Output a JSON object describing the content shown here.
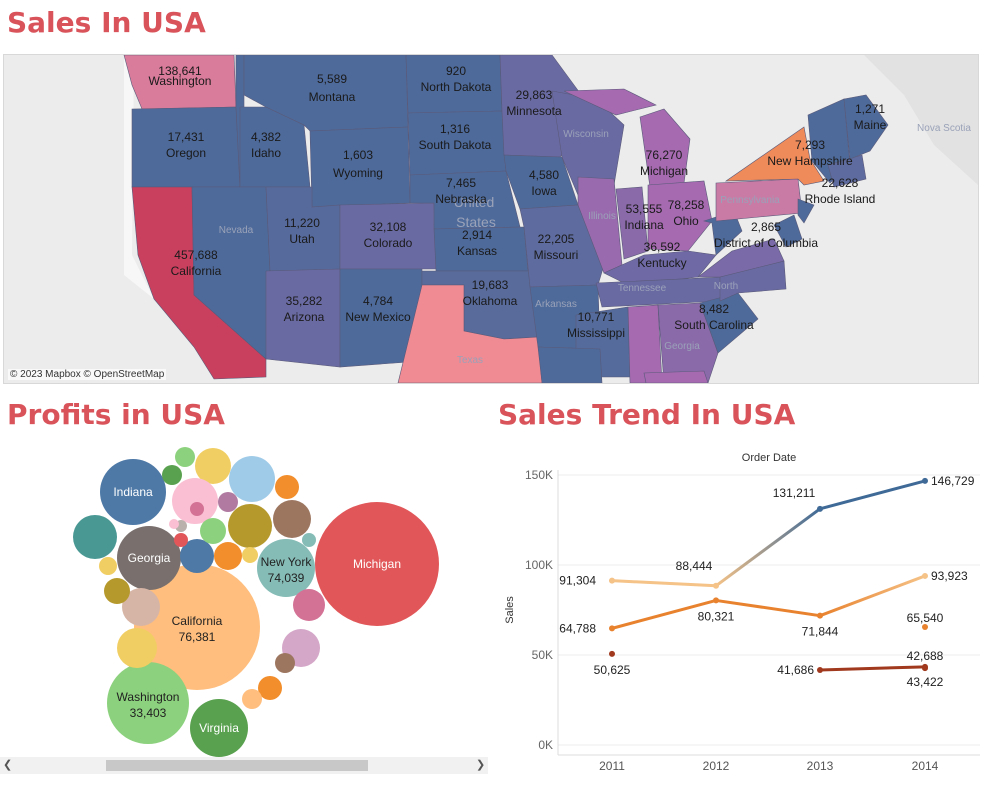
{
  "titles": {
    "sales": "Sales In USA",
    "profits": "Profits in USA",
    "trend": "Sales Trend In USA"
  },
  "map": {
    "attribution": "© 2023 Mapbox © OpenStreetMap",
    "regions": [
      {
        "key": "wa",
        "state": "Washington",
        "value": "138,641",
        "color": "#d97b9a"
      },
      {
        "key": "or",
        "state": "Oregon",
        "value": "17,431",
        "color": "#4e6a9a"
      },
      {
        "key": "ca",
        "state": "California",
        "value": "457,688",
        "color": "#c8405e"
      },
      {
        "key": "id",
        "state": "Idaho",
        "value": "4,382",
        "color": "#4e6a9a"
      },
      {
        "key": "mt",
        "state": "Montana",
        "value": "5,589",
        "color": "#4e6a9a"
      },
      {
        "key": "wy",
        "state": "Wyoming",
        "value": "1,603",
        "color": "#4e6a9a"
      },
      {
        "key": "ut",
        "state": "Utah",
        "value": "11,220",
        "color": "#576a9c"
      },
      {
        "key": "az",
        "state": "Arizona",
        "value": "35,282",
        "color": "#6a6aa3"
      },
      {
        "key": "co",
        "state": "Colorado",
        "value": "32,108",
        "color": "#6a6aa3"
      },
      {
        "key": "nm",
        "state": "New Mexico",
        "value": "4,784",
        "color": "#4e6a9a"
      },
      {
        "key": "nd",
        "state": "North Dakota",
        "value": "920",
        "color": "#4e6a9a"
      },
      {
        "key": "sd",
        "state": "South Dakota",
        "value": "1,316",
        "color": "#4e6a9a"
      },
      {
        "key": "ne",
        "state": "Nebraska",
        "value": "7,465",
        "color": "#4e6a9a"
      },
      {
        "key": "ks",
        "state": "Kansas",
        "value": "2,914",
        "color": "#4e6a9a"
      },
      {
        "key": "ok",
        "state": "Oklahoma",
        "value": "19,683",
        "color": "#586b9b"
      },
      {
        "key": "mn",
        "state": "Minnesota",
        "value": "29,863",
        "color": "#6a6aa3"
      },
      {
        "key": "ia",
        "state": "Iowa",
        "value": "4,580",
        "color": "#4e6a9a"
      },
      {
        "key": "mo",
        "state": "Missouri",
        "value": "22,205",
        "color": "#5e6b9e"
      },
      {
        "key": "mi",
        "state": "Michigan",
        "value": "76,270",
        "color": "#a56ab0"
      },
      {
        "key": "in",
        "state": "Indiana",
        "value": "53,555",
        "color": "#8b6aaa"
      },
      {
        "key": "oh",
        "state": "Ohio",
        "value": "78,258",
        "color": "#a56ab0"
      },
      {
        "key": "ky",
        "state": "Kentucky",
        "value": "36,592",
        "color": "#6f6aa5"
      },
      {
        "key": "ms",
        "state": "Mississippi",
        "value": "10,771",
        "color": "#546b9b"
      },
      {
        "key": "sc",
        "state": "South Carolina",
        "value": "8,482",
        "color": "#4e6a9a"
      },
      {
        "key": "dc",
        "state": "District of Columbia",
        "value": "2,865",
        "color": "#4e6a9a"
      },
      {
        "key": "ny",
        "state": "New Hampshire",
        "value": "7,293",
        "color": "#4e6a9a"
      },
      {
        "key": "me",
        "state": "Maine",
        "value": "1,271",
        "color": "#4e6a9a"
      },
      {
        "key": "ri",
        "state": "Rhode Island",
        "value": "22,628",
        "color": "#5e6b9e"
      }
    ],
    "faint_labels": [
      "Nevada",
      "Wisconsin",
      "Illinois",
      "Pennsylvania",
      "Tennessee",
      "Arkansas",
      "Georgia",
      "Texas",
      "North",
      "Nova Scotia",
      "United",
      "States"
    ]
  },
  "bubbles": {
    "labeled": [
      {
        "name": "Michigan",
        "value": ""
      },
      {
        "name": "Indiana",
        "value": ""
      },
      {
        "name": "Georgia",
        "value": ""
      },
      {
        "name": "New York",
        "value": "74,039"
      },
      {
        "name": "California",
        "value": "76,381"
      },
      {
        "name": "Washington",
        "value": "33,403"
      },
      {
        "name": "Virginia",
        "value": ""
      }
    ]
  },
  "chart_data": {
    "type": "line",
    "title": "Order Date",
    "xlabel": "",
    "ylabel": "Sales",
    "x": [
      "2011",
      "2012",
      "2013",
      "2014"
    ],
    "yticks": [
      "0K",
      "50K",
      "100K",
      "150K"
    ],
    "ylim": [
      0,
      150000
    ],
    "series": [
      {
        "values": [
          null,
          null,
          131211,
          146729
        ],
        "labels": [
          "",
          "",
          "131,211",
          "146,729"
        ],
        "color": "#3f6a97"
      },
      {
        "values": [
          91304,
          88444,
          null,
          93923
        ],
        "labels": [
          "91,304",
          "88,444",
          "",
          "93,923"
        ],
        "color": "#f5c287"
      },
      {
        "values": [
          64788,
          80321,
          71844,
          null
        ],
        "labels": [
          "64,788",
          "80,321",
          "71,844",
          ""
        ],
        "color": "#e8822e"
      },
      {
        "values": [
          null,
          null,
          null,
          65540
        ],
        "labels": [
          "",
          "",
          "",
          "65,540"
        ],
        "color": "#e8822e"
      },
      {
        "values": [
          50625,
          null,
          41686,
          43422
        ],
        "labels": [
          "50,625",
          "",
          "41,686",
          "43,422"
        ],
        "color": "#a0391d"
      },
      {
        "values": [
          null,
          null,
          null,
          42688
        ],
        "labels": [
          "",
          "",
          "",
          "42,688"
        ],
        "color": "#a0391d"
      }
    ]
  }
}
